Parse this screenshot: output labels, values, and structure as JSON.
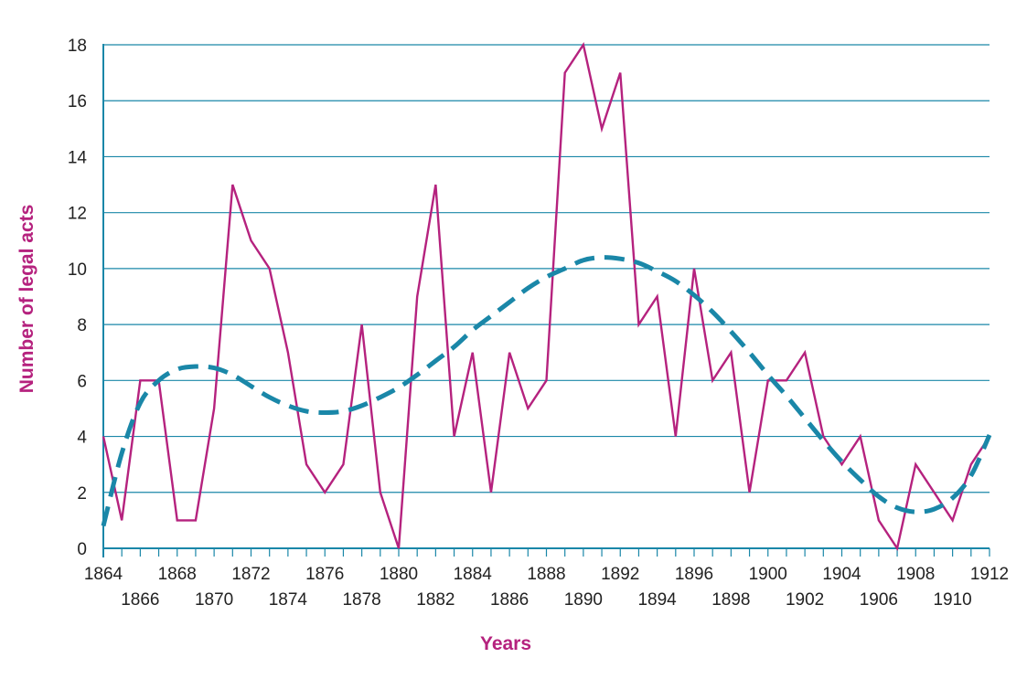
{
  "chart_data": {
    "type": "line",
    "xlabel": "Years",
    "ylabel": "Number of legal acts",
    "xlim": [
      1864,
      1912
    ],
    "ylim": [
      0,
      18
    ],
    "yticks": [
      0,
      2,
      4,
      6,
      8,
      10,
      12,
      14,
      16,
      18
    ],
    "xticks": [
      1864,
      1866,
      1868,
      1870,
      1872,
      1874,
      1876,
      1878,
      1880,
      1882,
      1884,
      1886,
      1888,
      1890,
      1892,
      1894,
      1896,
      1898,
      1900,
      1902,
      1904,
      1906,
      1908,
      1910,
      1912
    ],
    "grid": "horizontal",
    "x": [
      1864,
      1865,
      1866,
      1867,
      1868,
      1869,
      1870,
      1871,
      1872,
      1873,
      1874,
      1875,
      1876,
      1877,
      1878,
      1879,
      1880,
      1881,
      1882,
      1883,
      1884,
      1885,
      1886,
      1887,
      1888,
      1889,
      1890,
      1891,
      1892,
      1893,
      1894,
      1895,
      1896,
      1897,
      1898,
      1899,
      1900,
      1901,
      1902,
      1903,
      1904,
      1905,
      1906,
      1907,
      1908,
      1909,
      1910,
      1911,
      1912
    ],
    "series": [
      {
        "style": "solid",
        "color": "#b5227e",
        "values": [
          4,
          1,
          6,
          6,
          1,
          1,
          5,
          13,
          11,
          10,
          7,
          3,
          2,
          3,
          8,
          2,
          0,
          9,
          13,
          4,
          7,
          2,
          7,
          5,
          6,
          17,
          18,
          15,
          17,
          8,
          9,
          4,
          10,
          6,
          7,
          2,
          6,
          6,
          7,
          4,
          3,
          4,
          1,
          0,
          3,
          2,
          1,
          3,
          4
        ]
      },
      {
        "style": "dashed",
        "color": "#1a87a8",
        "values": [
          0.8,
          3.4,
          5.2,
          6.0,
          6.4,
          6.5,
          6.45,
          6.2,
          5.8,
          5.4,
          5.1,
          4.9,
          4.85,
          4.9,
          5.1,
          5.4,
          5.75,
          6.2,
          6.7,
          7.2,
          7.8,
          8.3,
          8.8,
          9.3,
          9.7,
          10.0,
          10.3,
          10.4,
          10.35,
          10.2,
          9.9,
          9.55,
          9.05,
          8.45,
          7.75,
          7.0,
          6.2,
          5.45,
          4.65,
          3.85,
          3.1,
          2.45,
          1.85,
          1.45,
          1.3,
          1.4,
          1.8,
          2.6,
          4.05
        ]
      }
    ]
  },
  "colors": {
    "axis": "#1a87a8",
    "grid": "#1a87a8",
    "title": "#b5227e"
  }
}
